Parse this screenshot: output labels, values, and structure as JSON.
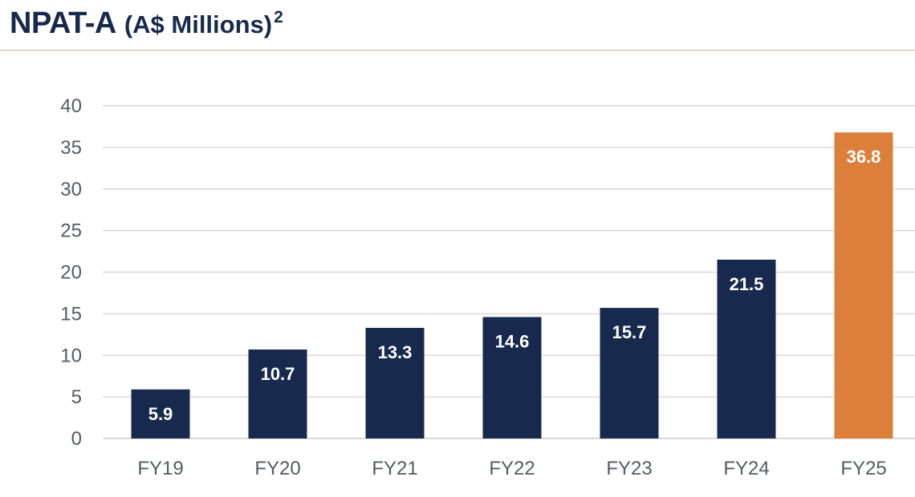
{
  "header": {
    "title": "NPAT-A",
    "unit": "(A$ Millions)",
    "footnote_mark": "2"
  },
  "colors": {
    "title": "#172a4d",
    "bar_default": "#172a4d",
    "bar_highlight": "#db7f3b",
    "grid": "#d9d9d9",
    "rule": "#c9b89b"
  },
  "chart_data": {
    "type": "bar",
    "title": "NPAT-A (A$ Millions)²",
    "xlabel": "",
    "ylabel": "",
    "categories": [
      "FY19",
      "FY20",
      "FY21",
      "FY22",
      "FY23",
      "FY24",
      "FY25"
    ],
    "values": [
      5.9,
      10.7,
      13.3,
      14.6,
      15.7,
      21.5,
      36.8
    ],
    "data_labels": [
      "5.9",
      "10.7",
      "13.3",
      "14.6",
      "15.7",
      "21.5",
      "36.8"
    ],
    "highlight_index": 6,
    "ylim": [
      0,
      40
    ],
    "yticks": [
      0,
      5,
      10,
      15,
      20,
      25,
      30,
      35,
      40
    ],
    "grid": true,
    "legend": "none"
  }
}
